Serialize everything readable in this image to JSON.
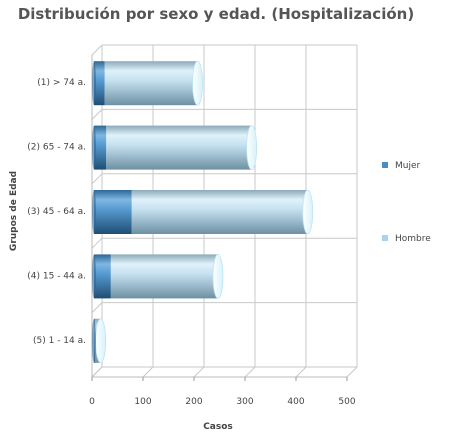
{
  "chart_data": {
    "type": "bar",
    "orientation": "horizontal",
    "stacked": true,
    "style": "3d-cylinder",
    "title": "Distribución por sexo y edad. (Hospitalización)",
    "xlabel": "Casos",
    "ylabel": "Grupos de Edad",
    "xlim": [
      0,
      500
    ],
    "xticks": [
      "0",
      "100",
      "200",
      "300",
      "400",
      "500"
    ],
    "grid": true,
    "legend_position": "right",
    "categories": [
      "(1) > 74 a.",
      "(2) 65 - 74 a.",
      "(3) 45 - 64 a.",
      "(4) 15 - 44 a.",
      "(5) 1 - 14 a."
    ],
    "series": [
      {
        "name": "Mujer",
        "color": "#4a8cc4",
        "values": [
          25,
          28,
          78,
          37,
          5
        ]
      },
      {
        "name": "Hombre",
        "color": "#a9d3ea",
        "values": [
          182,
          285,
          345,
          210,
          12
        ]
      }
    ]
  }
}
